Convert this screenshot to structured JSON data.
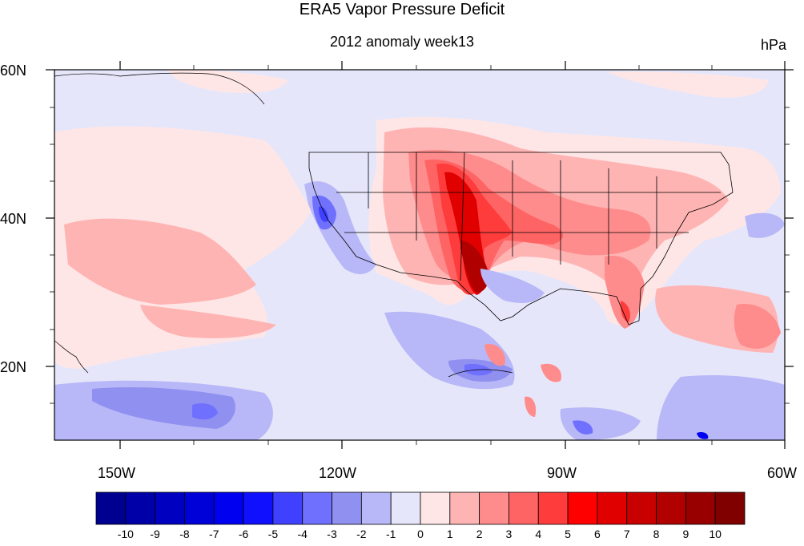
{
  "title": "ERA5 Vapor Pressure Deficit",
  "subtitle": "2012 anomaly week13",
  "units": "hPa",
  "lat_labels": [
    "60N",
    "40N",
    "20N"
  ],
  "lon_labels": [
    "150W",
    "120W",
    "90W",
    "60W"
  ],
  "colorbar": {
    "labels": [
      "-10",
      "-9",
      "-8",
      "-7",
      "-6",
      "-5",
      "-4",
      "-3",
      "-2",
      "-1",
      "0",
      "1",
      "2",
      "3",
      "4",
      "5",
      "6",
      "7",
      "8",
      "9",
      "10"
    ],
    "colors": [
      "#000090",
      "#0000a8",
      "#0000c0",
      "#0000d8",
      "#0000f0",
      "#1010ff",
      "#4040ff",
      "#7070ff",
      "#9090f0",
      "#b8b8f8",
      "#e6e6fa",
      "#ffe6e6",
      "#ffb4b4",
      "#ff8c8c",
      "#ff6464",
      "#ff3c3c",
      "#ff0000",
      "#e00000",
      "#c80000",
      "#b00000",
      "#980000",
      "#800000"
    ]
  }
}
